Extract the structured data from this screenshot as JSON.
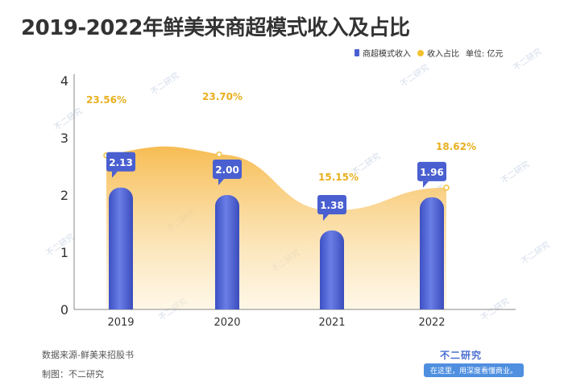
{
  "chart_data": {
    "type": "bar",
    "title": "2019-2022年鲜美来商超模式收入及占比",
    "categories": [
      "2019",
      "2020",
      "2021",
      "2022"
    ],
    "ylim": [
      0,
      4
    ],
    "yticks": [
      "0",
      "1",
      "2",
      "3",
      "4"
    ],
    "unit_label": "单位: 亿元",
    "series": [
      {
        "name": "商超模式收入",
        "values": [
          2.13,
          2.0,
          1.38,
          1.96
        ],
        "labels": [
          "2.13",
          "2.00",
          "1.38",
          "1.96"
        ]
      },
      {
        "name": "收入占比",
        "type": "area",
        "values": [
          23.56,
          23.7,
          15.15,
          18.62
        ],
        "labels": [
          "23.56%",
          "23.70%",
          "15.15%",
          "18.62%"
        ]
      }
    ],
    "legend_position": "top-right",
    "grid": false,
    "colors": {
      "bar": "#4a5fd0",
      "area": "#f7c556",
      "ratio_label": "#e8b020",
      "bubble": "#4a5fd0"
    }
  },
  "footer": {
    "source": "数据来源-鲜美来招股书",
    "maker": "制图：不二研究"
  },
  "brand": {
    "name": "不二研究",
    "slogan": "在这里，用深度看懂商业。"
  },
  "watermark": "不二研究"
}
